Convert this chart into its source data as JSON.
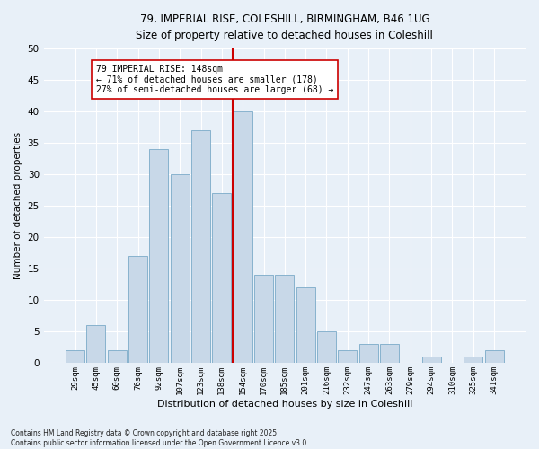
{
  "title_line1": "79, IMPERIAL RISE, COLESHILL, BIRMINGHAM, B46 1UG",
  "title_line2": "Size of property relative to detached houses in Coleshill",
  "xlabel": "Distribution of detached houses by size in Coleshill",
  "ylabel": "Number of detached properties",
  "bar_labels": [
    "29sqm",
    "45sqm",
    "60sqm",
    "76sqm",
    "92sqm",
    "107sqm",
    "123sqm",
    "138sqm",
    "154sqm",
    "170sqm",
    "185sqm",
    "201sqm",
    "216sqm",
    "232sqm",
    "247sqm",
    "263sqm",
    "279sqm",
    "294sqm",
    "310sqm",
    "325sqm",
    "341sqm"
  ],
  "bar_values": [
    2,
    6,
    2,
    17,
    34,
    30,
    37,
    27,
    40,
    14,
    14,
    12,
    5,
    2,
    3,
    3,
    0,
    1,
    0,
    1,
    2
  ],
  "bar_color": "#c8d8e8",
  "bar_edge_color": "#7aaac8",
  "vline_index": 8,
  "vline_color": "#cc0000",
  "annotation_text": "79 IMPERIAL RISE: 148sqm\n← 71% of detached houses are smaller (178)\n27% of semi-detached houses are larger (68) →",
  "annotation_box_color": "#ffffff",
  "annotation_box_edge": "#cc0000",
  "background_color": "#e8f0f8",
  "grid_color": "#ffffff",
  "footer_text": "Contains HM Land Registry data © Crown copyright and database right 2025.\nContains public sector information licensed under the Open Government Licence v3.0.",
  "ylim": [
    0,
    50
  ],
  "yticks": [
    0,
    5,
    10,
    15,
    20,
    25,
    30,
    35,
    40,
    45,
    50
  ]
}
